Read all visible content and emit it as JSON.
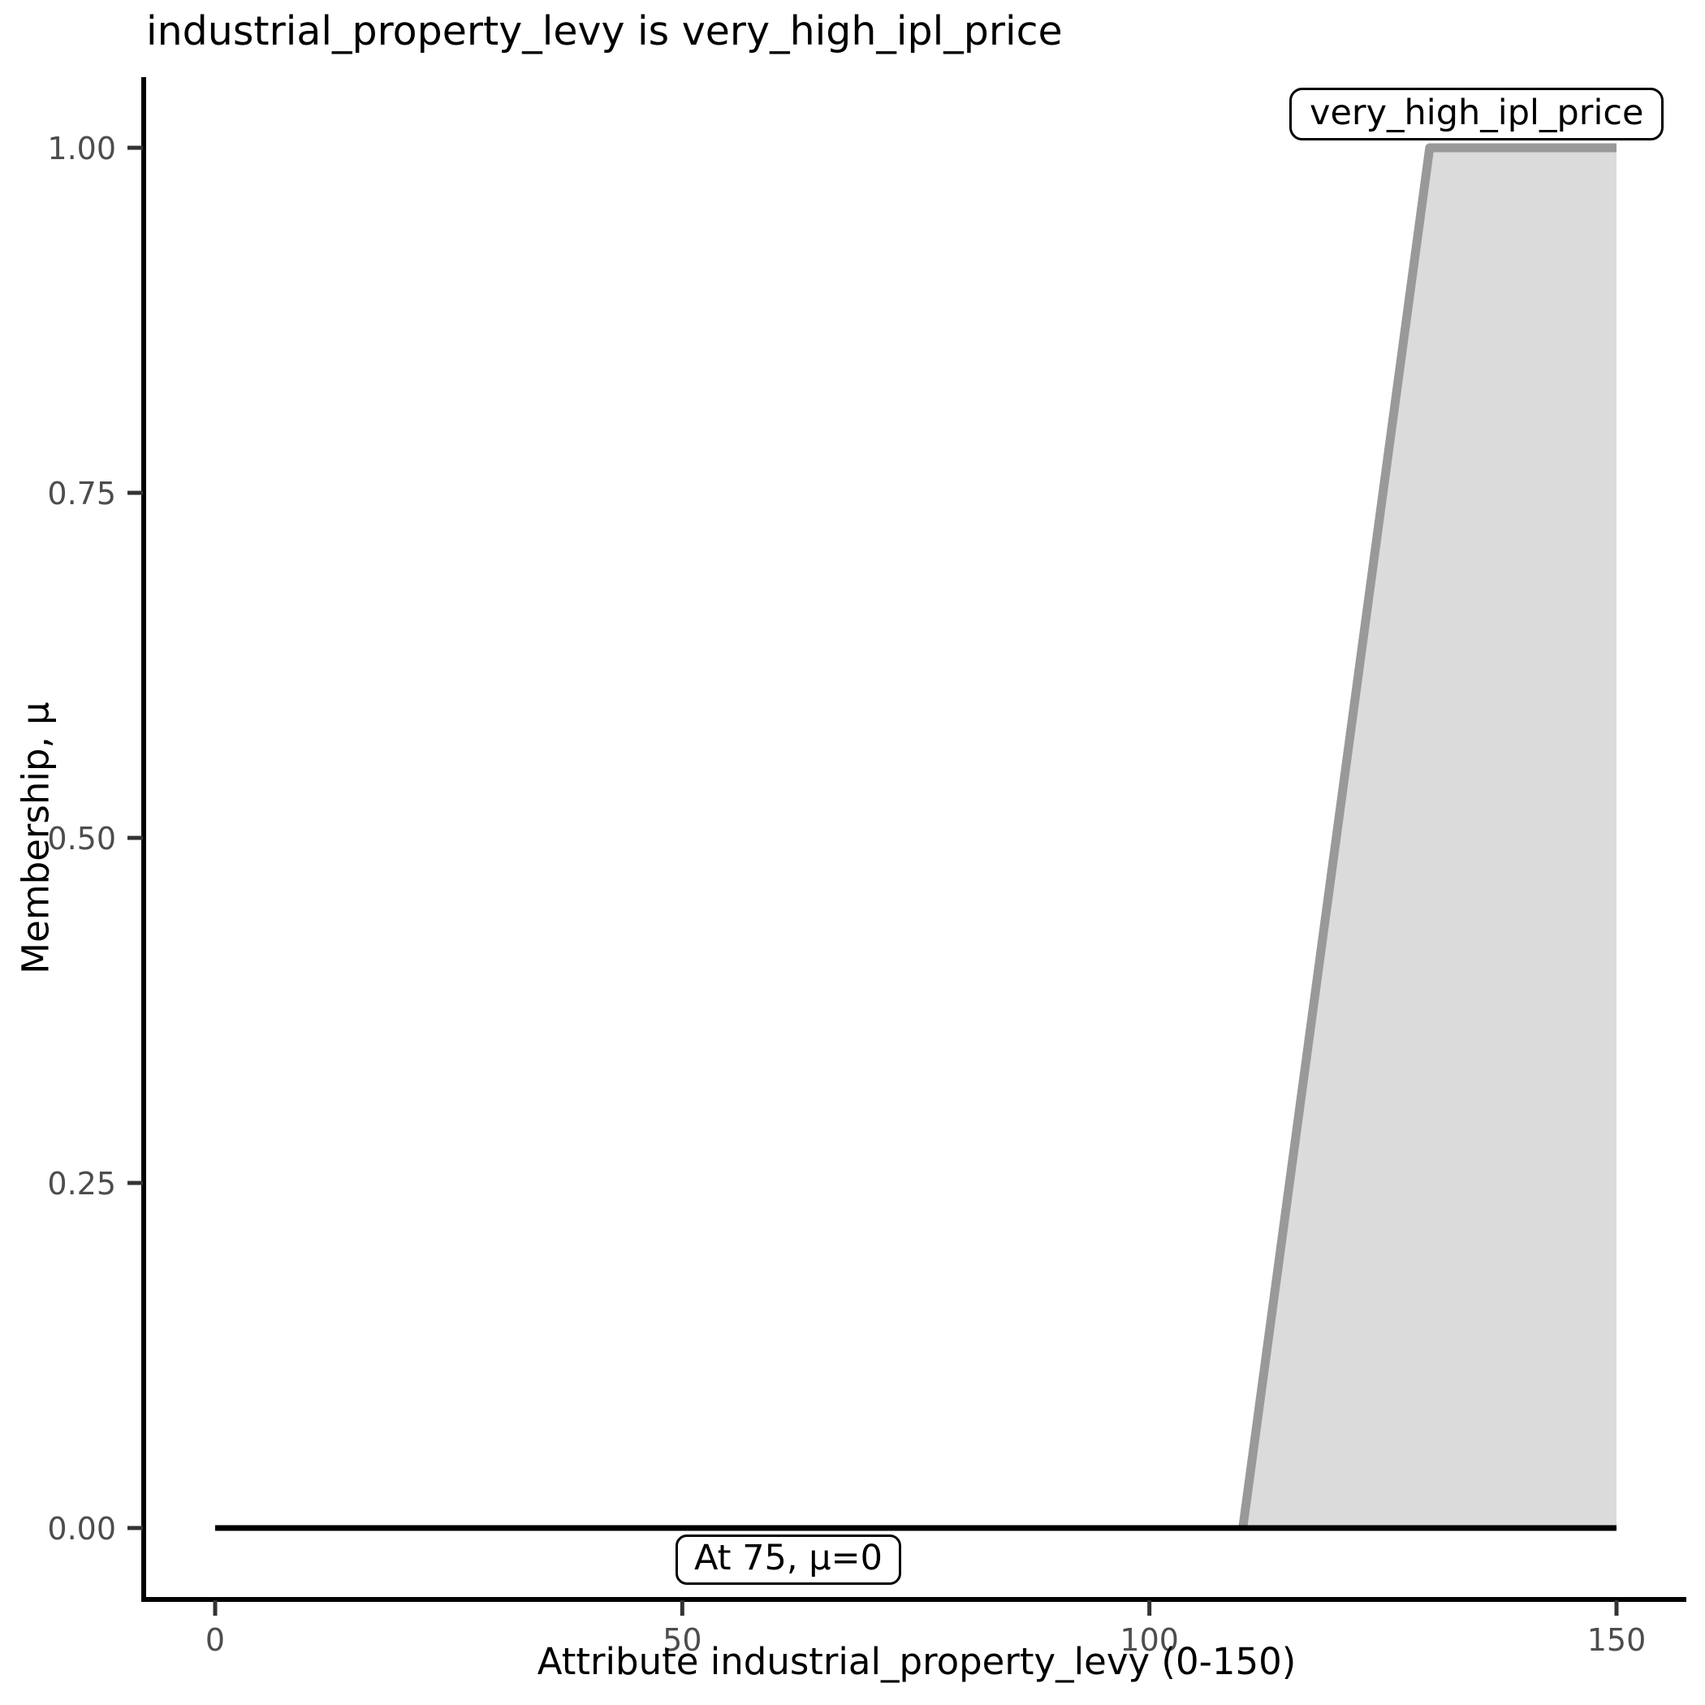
{
  "title": "industrial_property_levy is very_high_ipl_price",
  "legend": {
    "label": "very_high_ipl_price"
  },
  "annotation": {
    "label": "At 75, μ=0"
  },
  "axes": {
    "x_label": "Attribute industrial_property_levy (0-150)",
    "y_label": "Membership, μ"
  },
  "colors": {
    "membership_fill": "#DBDBDB",
    "membership_stroke": "#999999",
    "baseline": "#000000",
    "axis": "#000000",
    "tick_mark": "#333333",
    "tick_label": "#4D4D4D",
    "text": "#000000",
    "box_background": "#FFFFFF",
    "box_border": "#000000"
  },
  "chart_data": {
    "type": "area",
    "title": "industrial_property_levy is very_high_ipl_price",
    "xlabel": "Attribute industrial_property_levy (0-150)",
    "ylabel": "Membership, μ",
    "xlim": [
      0,
      150
    ],
    "ylim": [
      0,
      1
    ],
    "x_ticks": [
      0,
      50,
      100,
      150
    ],
    "x_tick_labels": [
      "0",
      "50",
      "100",
      "150"
    ],
    "y_ticks": [
      0,
      0.25,
      0.5,
      0.75,
      1
    ],
    "y_tick_labels": [
      "0.00",
      "0.25",
      "0.50",
      "0.75",
      "1.00"
    ],
    "grid": false,
    "legend_position": "top-right",
    "series": [
      {
        "name": "very_high_ipl_price",
        "kind": "membership-function",
        "shape": "right-shoulder-trapezoid",
        "points": [
          [
            110,
            0
          ],
          [
            130,
            1
          ],
          [
            150,
            1
          ]
        ],
        "fill": true
      },
      {
        "name": "zero-membership-baseline",
        "kind": "line",
        "points": [
          [
            0,
            0
          ],
          [
            150,
            0
          ]
        ]
      }
    ],
    "annotations": [
      {
        "text": "At 75, μ=0",
        "x": 75,
        "y": 0
      }
    ]
  }
}
